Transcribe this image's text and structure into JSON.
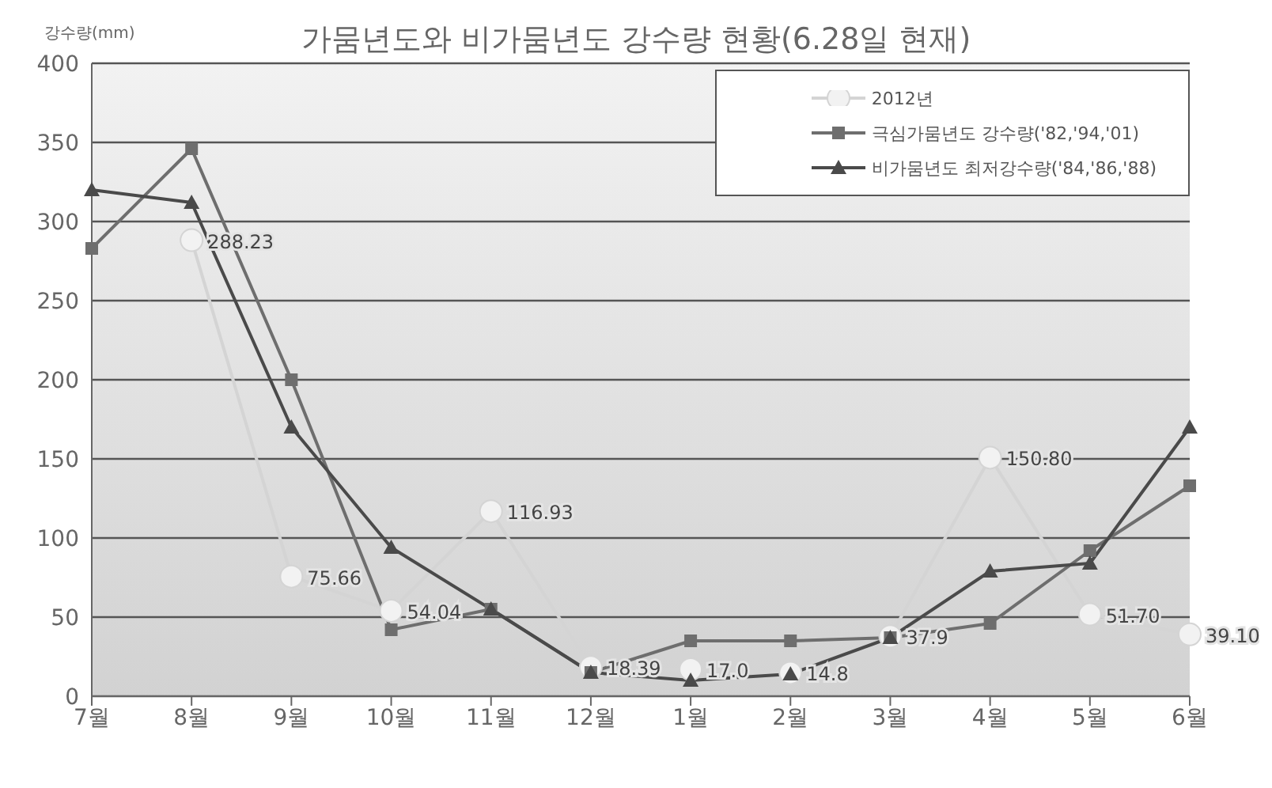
{
  "chart_data": {
    "type": "line",
    "title": "가뭄년도와 비가뭄년도 강수량 현황(6.28일  현재)",
    "ylabel": "강수량(mm)",
    "categories": [
      "7월",
      "8월",
      "9월",
      "10월",
      "11월",
      "12월",
      "1월",
      "2월",
      "3월",
      "4월",
      "5월",
      "6월"
    ],
    "series": [
      {
        "name": "2012년",
        "color": "#d4d4d4",
        "marker": "circle",
        "values": [
          null,
          288.23,
          75.66,
          54.04,
          116.93,
          18.39,
          17.0,
          14.8,
          37.9,
          150.8,
          51.7,
          39.1
        ],
        "value_labels": [
          null,
          "288.23",
          "75.66",
          "54.04",
          "116.93",
          "18.39",
          "17.0",
          "14.8",
          "37.9",
          "150.80",
          "51.70",
          "39.10"
        ]
      },
      {
        "name": "극심가뭄년도 강수량('82,'94,'01)",
        "color": "#6e6e6e",
        "marker": "square",
        "values": [
          283,
          346,
          200,
          42,
          55,
          15,
          35,
          35,
          37,
          46,
          92,
          133
        ]
      },
      {
        "name": "비가뭄년도 최저강수량('84,'86,'88)",
        "color": "#4a4a4a",
        "marker": "triangle",
        "values": [
          320,
          312,
          170,
          94,
          55,
          15,
          10,
          14,
          37,
          79,
          84,
          170
        ]
      }
    ],
    "ylim": [
      0,
      400
    ],
    "yticks": [
      0,
      50,
      100,
      150,
      200,
      250,
      300,
      350,
      400
    ],
    "grid": "y",
    "legend": "top right"
  }
}
